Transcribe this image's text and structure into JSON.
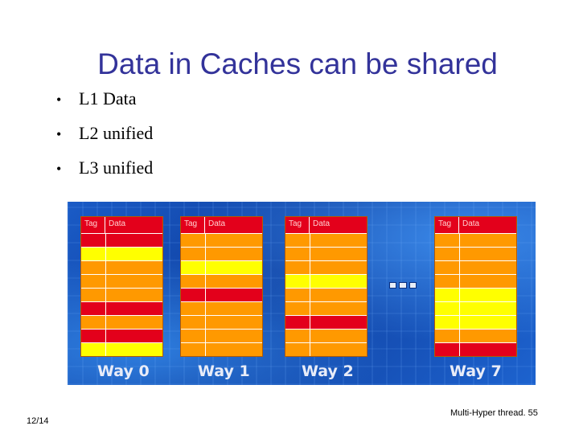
{
  "slide": {
    "title": "Data in Caches can be shared",
    "bullets": [
      "L1 Data",
      "L2 unified",
      "L3 unified"
    ],
    "bullet_glyph": "•"
  },
  "diagram": {
    "header": {
      "tag": "Tag",
      "data": "Data"
    },
    "colors": {
      "red": "#e3001b",
      "yellow": "#ffff00",
      "orange": "#ff9900"
    },
    "ellipsis": "---",
    "ways": [
      {
        "label": "Way 0",
        "rows": [
          "red",
          "yellow",
          "orange",
          "orange",
          "orange",
          "red",
          "orange",
          "red",
          "yellow"
        ]
      },
      {
        "label": "Way 1",
        "rows": [
          "orange",
          "orange",
          "yellow",
          "orange",
          "red",
          "orange",
          "orange",
          "orange",
          "orange"
        ]
      },
      {
        "label": "Way 2",
        "rows": [
          "orange",
          "orange",
          "orange",
          "yellow",
          "orange",
          "orange",
          "red",
          "orange",
          "orange"
        ]
      },
      {
        "label": "Way 7",
        "rows": [
          "orange",
          "orange",
          "orange",
          "orange",
          "yellow",
          "yellow",
          "yellow",
          "orange",
          "red"
        ]
      }
    ]
  },
  "footer": {
    "date": "12/14",
    "source": "Multi-Hyper thread. 55"
  }
}
